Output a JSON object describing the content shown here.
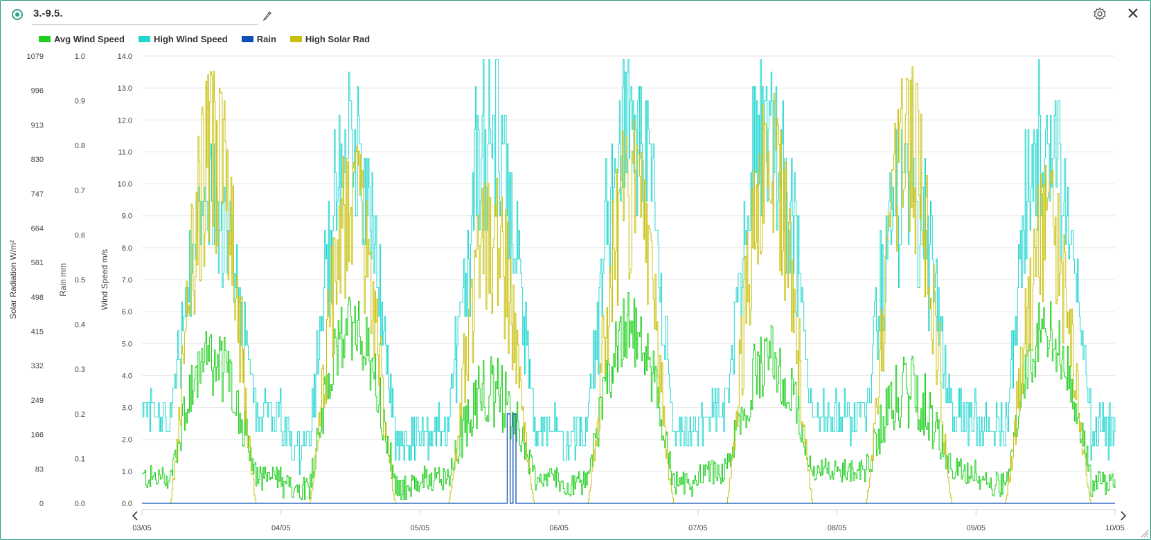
{
  "header": {
    "title": "3.-9.5."
  },
  "legend": [
    {
      "label": "Avg Wind Speed",
      "color": "#1ecf1e"
    },
    {
      "label": "High Wind Speed",
      "color": "#22d6d0"
    },
    {
      "label": "Rain",
      "color": "#0a4fb5"
    },
    {
      "label": "High Solar Rad",
      "color": "#c8c00c"
    }
  ],
  "icons": {
    "status": "status-dot-icon",
    "edit": "pencil-icon",
    "settings": "gear-icon",
    "close": "close-icon",
    "prev": "chevron-left-icon",
    "next": "chevron-right-icon"
  },
  "chart_data": {
    "type": "line",
    "title": "",
    "x_tick_labels": [
      "03/05",
      "04/05",
      "05/05",
      "06/05",
      "07/05",
      "08/05",
      "09/05",
      "10/05"
    ],
    "xlim": [
      "03/05",
      "10/05"
    ],
    "grid": true,
    "legend_position": "top-left",
    "axes": {
      "solar": {
        "label": "Solar Radiation W/m²",
        "ticks": [
          "0",
          "83",
          "166",
          "249",
          "332",
          "415",
          "498",
          "581",
          "664",
          "747",
          "830",
          "913",
          "996",
          "1079"
        ],
        "ylim": [
          0,
          1079
        ]
      },
      "rain": {
        "label": "Rain mm",
        "ticks": [
          "0.0",
          "0.1",
          "0.2",
          "0.3",
          "0.4",
          "0.5",
          "0.6",
          "0.7",
          "0.8",
          "0.9",
          "1.0"
        ],
        "ylim": [
          0,
          1.0
        ]
      },
      "wind": {
        "label": "Wind Speed m/s",
        "ticks": [
          "0.0",
          "1.0",
          "2.0",
          "3.0",
          "4.0",
          "5.0",
          "6.0",
          "7.0",
          "8.0",
          "9.0",
          "10.0",
          "11.0",
          "12.0",
          "13.0",
          "14.0"
        ],
        "ylim": [
          0,
          14
        ]
      }
    },
    "series": [
      {
        "name": "Avg Wind Speed",
        "axis": "wind",
        "color": "#1ecf1e",
        "daily_peak_ms": [
          4.5,
          5.5,
          3.5,
          5.5,
          4.5,
          3.5,
          5.5
        ],
        "night_level_ms": [
          0.8,
          0.5,
          0.8,
          0.6,
          1.0,
          1.0,
          0.6
        ]
      },
      {
        "name": "High Wind Speed",
        "axis": "wind",
        "color": "#22d6d0",
        "daily_peak_ms": [
          8.5,
          11.5,
          13.4,
          13.0,
          13.0,
          10.5,
          12.5
        ],
        "night_level_ms": [
          1.5,
          1.0,
          1.0,
          1.0,
          1.3,
          1.3,
          1.2
        ]
      },
      {
        "name": "Rain",
        "axis": "rain",
        "color": "#0a4fb5",
        "events": [
          {
            "date": "05/05",
            "time": "15:00",
            "mm": 0.2
          },
          {
            "date": "05/05",
            "time": "16:00",
            "mm": 0.2
          }
        ],
        "baseline_mm": 0.0
      },
      {
        "name": "High Solar Rad",
        "axis": "solar",
        "color": "#c8c00c",
        "daily_peak_wm2": [
          1079,
          895,
          830,
          950,
          1040,
          1079,
          840
        ]
      }
    ]
  }
}
